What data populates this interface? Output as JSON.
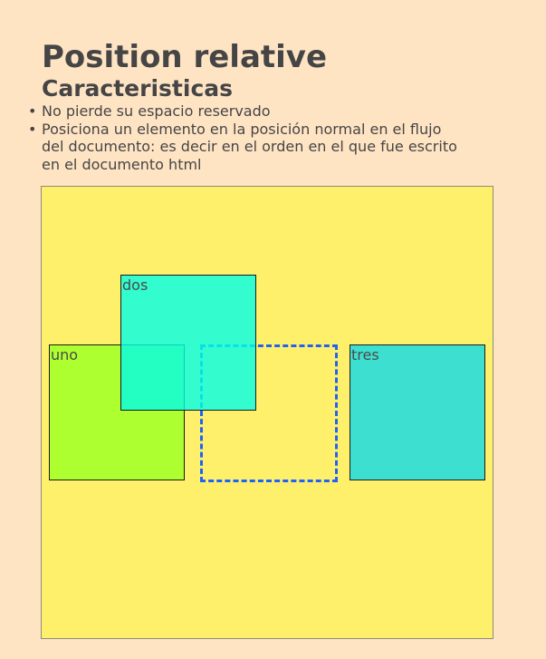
{
  "page": {
    "title": "Position relative",
    "subtitle": "Caracteristicas"
  },
  "features": [
    "No pierde su espacio reservado",
    "Posiciona un elemento en la posición normal en el flujo del documento: es decir en el orden en el que fue escrito en el documento html"
  ],
  "demo": {
    "boxes": {
      "uno": "uno",
      "dos": "dos",
      "tres": "tres"
    },
    "colors": {
      "page_background": "#ffe4c4",
      "container_background": "#fff06b",
      "uno_background": "#adff2f",
      "dos_background": "#00ffe7",
      "tres_background": "#3de0d0",
      "ghost_outline": "#1f63f5",
      "text": "#454545"
    }
  }
}
